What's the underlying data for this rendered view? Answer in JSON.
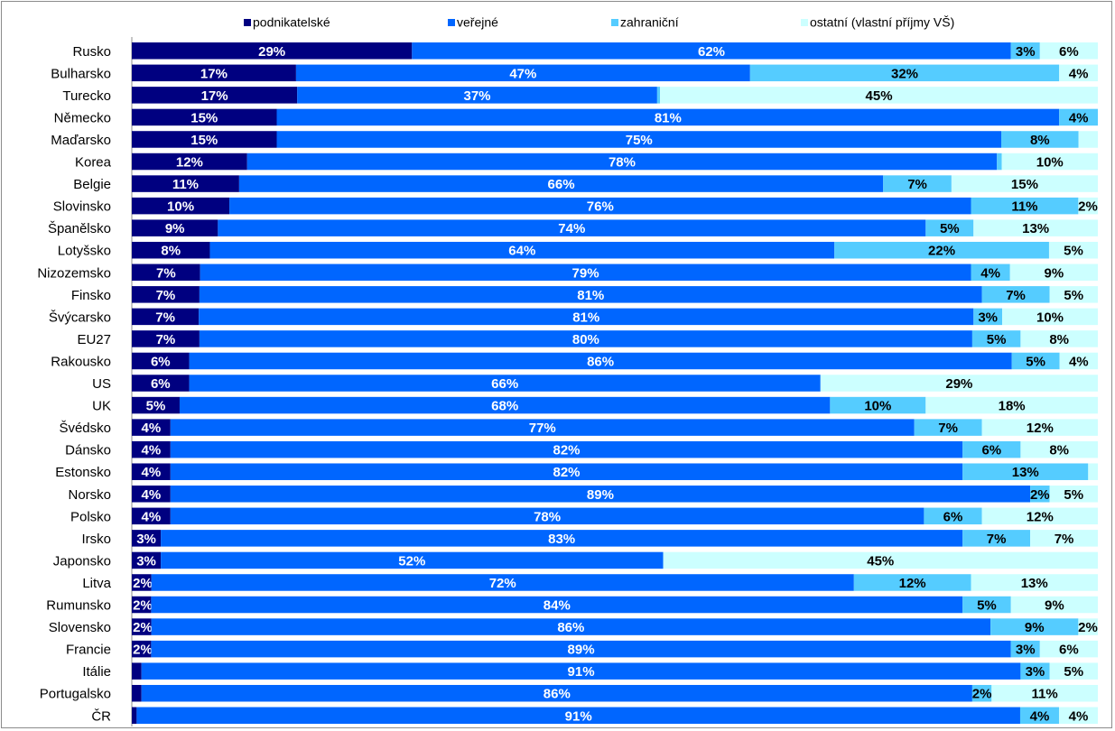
{
  "chart_data": {
    "type": "bar",
    "orientation": "horizontal",
    "stacked": true,
    "percent_stacked": true,
    "legend": "top",
    "grid": false,
    "xlim": [
      0,
      100
    ],
    "categories": [
      "Rusko",
      "Bulharsko",
      "Turecko",
      "Německo",
      "Maďarsko",
      "Korea",
      "Belgie",
      "Slovinsko",
      "Španělsko",
      "Lotyšsko",
      "Nizozemsko",
      "Finsko",
      "Švýcarsko",
      "EU27",
      "Rakousko",
      "US",
      "UK",
      "Švédsko",
      "Dánsko",
      "Estonsko",
      "Norsko",
      "Polsko",
      "Irsko",
      "Japonsko",
      "Litva",
      "Rumunsko",
      "Slovensko",
      "Francie",
      "Itálie",
      "Portugalsko",
      "ČR"
    ],
    "series": [
      {
        "name": "podnikatelské",
        "color": "#000080",
        "values": [
          29,
          17,
          17,
          15,
          15,
          12,
          11,
          10,
          9,
          8,
          7,
          7,
          7,
          7,
          6,
          6,
          5,
          4,
          4,
          4,
          4,
          4,
          3,
          3,
          2,
          2,
          2,
          2,
          1,
          1,
          0.5
        ],
        "labels": [
          "29%",
          "17%",
          "17%",
          "15%",
          "15%",
          "12%",
          "11%",
          "10%",
          "9%",
          "8%",
          "7%",
          "7%",
          "7%",
          "7%",
          "6%",
          "6%",
          "5%",
          "4%",
          "4%",
          "4%",
          "4%",
          "4%",
          "3%",
          "3%",
          "2%",
          "2%",
          "2%",
          "2%",
          "",
          "",
          ""
        ]
      },
      {
        "name": "veřejné",
        "color": "#0066ff",
        "values": [
          62,
          47,
          37,
          81,
          75,
          78,
          66,
          76,
          74,
          64,
          79,
          81,
          81,
          80,
          86,
          66,
          68,
          77,
          82,
          82,
          89,
          78,
          83,
          52,
          72,
          84,
          86,
          89,
          91,
          86,
          91
        ],
        "labels": [
          "62%",
          "47%",
          "37%",
          "81%",
          "75%",
          "78%",
          "66%",
          "76%",
          "74%",
          "64%",
          "79%",
          "81%",
          "81%",
          "80%",
          "86%",
          "66%",
          "68%",
          "77%",
          "82%",
          "82%",
          "89%",
          "78%",
          "83%",
          "52%",
          "72%",
          "84%",
          "86%",
          "89%",
          "91%",
          "86%",
          "91%"
        ]
      },
      {
        "name": "zahraniční",
        "color": "#55ccff",
        "values": [
          3,
          32,
          0.3,
          4,
          8,
          0.5,
          7,
          11,
          5,
          22,
          4,
          7,
          3,
          5,
          5,
          0,
          10,
          7,
          6,
          13,
          2,
          6,
          7,
          0,
          12,
          5,
          9,
          3,
          3,
          2,
          4
        ],
        "labels": [
          "3%",
          "32%",
          "",
          "4%",
          "8%",
          "",
          "7%",
          "11%",
          "5%",
          "22%",
          "4%",
          "7%",
          "3%",
          "5%",
          "5%",
          "",
          "10%",
          "7%",
          "6%",
          "13%",
          "2%",
          "6%",
          "7%",
          "",
          "12%",
          "5%",
          "9%",
          "3%",
          "3%",
          "2%",
          "4%"
        ]
      },
      {
        "name": "ostatní (vlastní příjmy VŠ)",
        "color": "#ccffff",
        "values": [
          6,
          4,
          45,
          0,
          2,
          10,
          15,
          2,
          13,
          5,
          9,
          5,
          10,
          8,
          4,
          29,
          18,
          12,
          8,
          1,
          5,
          12,
          7,
          45,
          13,
          9,
          2,
          6,
          5,
          11,
          4
        ],
        "labels": [
          "6%",
          "4%",
          "45%",
          "",
          "",
          "10%",
          "15%",
          "2%",
          "13%",
          "5%",
          "9%",
          "5%",
          "10%",
          "8%",
          "4%",
          "29%",
          "18%",
          "12%",
          "8%",
          "",
          "5%",
          "12%",
          "7%",
          "45%",
          "13%",
          "9%",
          "2%",
          "6%",
          "5%",
          "11%",
          "4%"
        ]
      }
    ]
  }
}
